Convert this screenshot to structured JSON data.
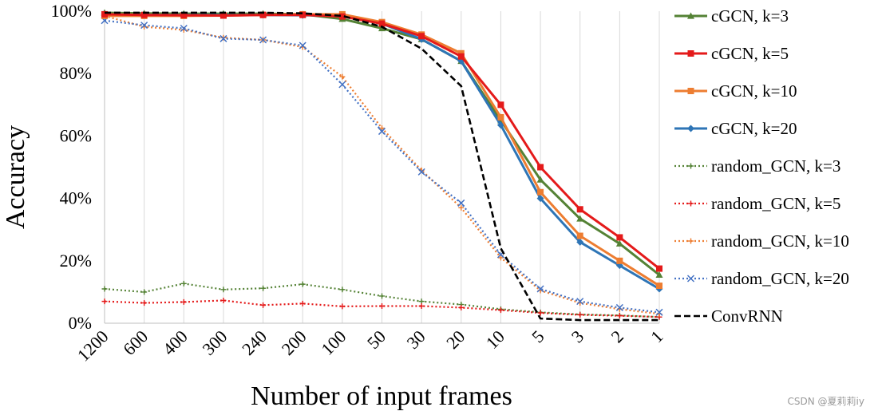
{
  "chart_data": {
    "type": "line",
    "xlabel": "Number of input frames",
    "ylabel": "Accuracy",
    "x": [
      "1200",
      "600",
      "400",
      "300",
      "240",
      "200",
      "100",
      "50",
      "30",
      "20",
      "10",
      "5",
      "3",
      "2",
      "1"
    ],
    "ylim": [
      0,
      100
    ],
    "y_ticks": [
      "0%",
      "20%",
      "40%",
      "60%",
      "80%",
      "100%"
    ],
    "grid": "vertical",
    "legend_position": "right",
    "series": [
      {
        "name": "cGCN, k=3",
        "color": "#548235",
        "marker": "triangle",
        "dash": "solid",
        "values": [
          99.5,
          99.3,
          99.2,
          99.2,
          99.2,
          99.0,
          97.5,
          94.5,
          91.0,
          84.0,
          65.0,
          46.0,
          33.5,
          25.5,
          15.5
        ]
      },
      {
        "name": "cGCN, k=5",
        "color": "#e41a1a",
        "marker": "square",
        "dash": "solid",
        "values": [
          99.0,
          98.8,
          98.7,
          98.6,
          98.8,
          98.8,
          98.3,
          96.0,
          92.0,
          85.5,
          70.0,
          50.0,
          36.5,
          27.5,
          17.5
        ]
      },
      {
        "name": "cGCN, k=10",
        "color": "#ed7d31",
        "marker": "square",
        "dash": "solid",
        "values": [
          98.5,
          98.5,
          98.5,
          98.6,
          98.8,
          99.0,
          99.0,
          96.5,
          92.5,
          86.5,
          66.0,
          42.0,
          28.0,
          20.0,
          12.0
        ]
      },
      {
        "name": "cGCN, k=20",
        "color": "#2e75b6",
        "marker": "diamond",
        "dash": "solid",
        "values": [
          99.0,
          98.8,
          98.8,
          98.8,
          98.8,
          98.7,
          98.6,
          96.0,
          91.0,
          84.0,
          63.5,
          40.0,
          26.0,
          18.5,
          11.0
        ]
      },
      {
        "name": "random_GCN, k=3",
        "color": "#548235",
        "marker": "plus",
        "dash": "dotted",
        "values": [
          11.0,
          10.0,
          12.7,
          10.8,
          11.2,
          12.5,
          10.8,
          8.7,
          7.0,
          6.0,
          4.5,
          3.5,
          2.8,
          2.5,
          2.0
        ]
      },
      {
        "name": "random_GCN, k=5",
        "color": "#e41a1a",
        "marker": "plus",
        "dash": "dotted",
        "values": [
          7.0,
          6.5,
          6.8,
          7.3,
          5.8,
          6.3,
          5.4,
          5.5,
          5.5,
          5.0,
          4.2,
          3.3,
          2.7,
          2.4,
          2.0
        ]
      },
      {
        "name": "random_GCN, k=10",
        "color": "#ed7d31",
        "marker": "plus",
        "dash": "dotted",
        "values": [
          98.5,
          95.0,
          94.0,
          91.5,
          90.8,
          88.5,
          79.0,
          62.5,
          49.0,
          37.0,
          21.0,
          10.5,
          6.5,
          4.5,
          3.0
        ]
      },
      {
        "name": "random_GCN, k=20",
        "color": "#4472c4",
        "marker": "x",
        "dash": "dotted",
        "values": [
          97.0,
          95.5,
          94.5,
          91.2,
          90.8,
          89.0,
          76.5,
          61.5,
          48.5,
          38.5,
          22.0,
          11.0,
          7.0,
          5.0,
          3.5
        ]
      },
      {
        "name": "ConvRNN",
        "color": "#000000",
        "marker": "none",
        "dash": "dashed",
        "values": [
          99.5,
          99.5,
          99.5,
          99.5,
          99.5,
          99.3,
          98.5,
          95.0,
          88.0,
          76.0,
          24.0,
          1.5,
          1.0,
          1.0,
          1.0
        ]
      }
    ]
  },
  "watermark": "CSDN @夏莉莉iy"
}
